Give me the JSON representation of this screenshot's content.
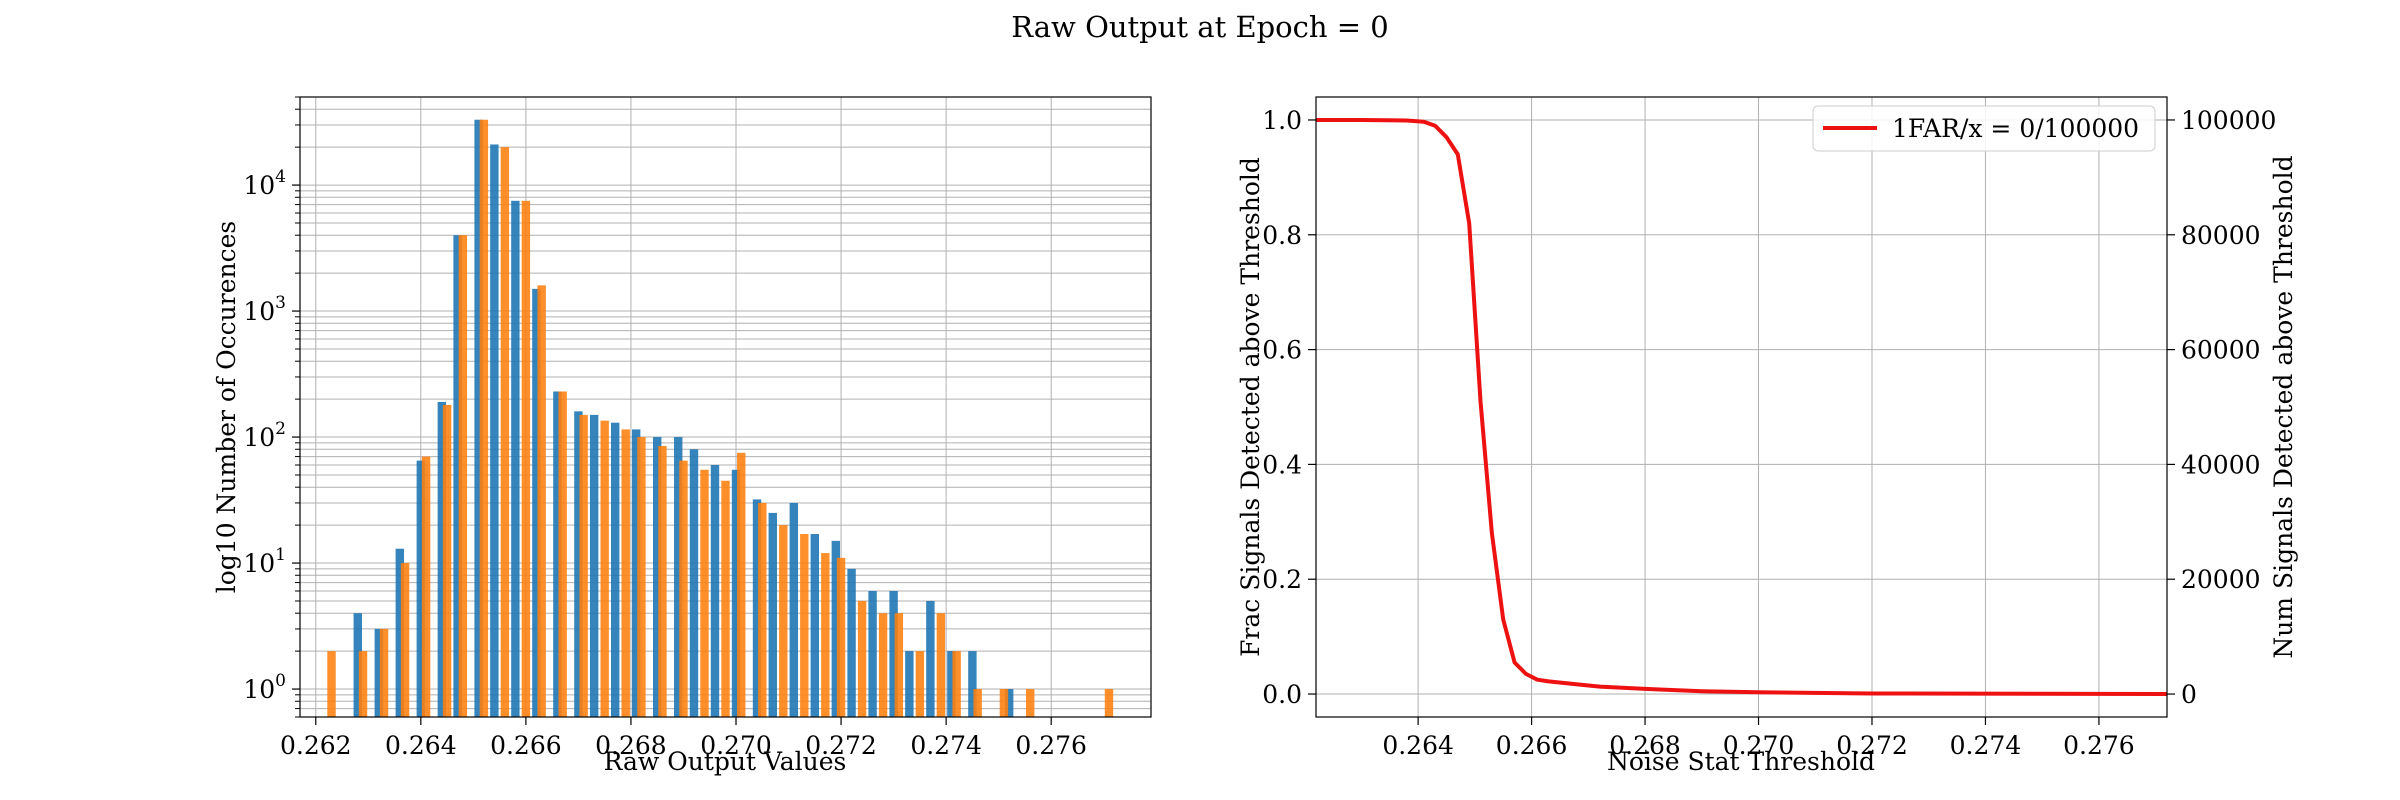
{
  "figure": {
    "title": "Raw Output at Epoch = 0"
  },
  "chart_data": [
    {
      "type": "bar",
      "scale": "log",
      "xlabel": "Raw Output Values",
      "ylabel": "log10 Number of Occurences",
      "xlim": [
        0.2617,
        0.2779
      ],
      "ylim": [
        0.6,
        50000
      ],
      "grid": true,
      "xticks": [
        0.262,
        0.264,
        0.266,
        0.268,
        0.27,
        0.272,
        0.274,
        0.276
      ],
      "xtick_labels": [
        "0.262",
        "0.264",
        "0.266",
        "0.268",
        "0.270",
        "0.272",
        "0.274",
        "0.276"
      ],
      "yticks": [
        1,
        10,
        100,
        1000,
        10000
      ],
      "ytick_labels": [
        {
          "base": "10",
          "exp": "0"
        },
        {
          "base": "10",
          "exp": "1"
        },
        {
          "base": "10",
          "exp": "2"
        },
        {
          "base": "10",
          "exp": "3"
        },
        {
          "base": "10",
          "exp": "4"
        }
      ],
      "colors": {
        "blue": "#1f77b4",
        "orange": "#ff7f0e"
      },
      "series": [
        {
          "values": [
            [
              0.2628,
              4
            ],
            [
              0.2632,
              3
            ],
            [
              0.2636,
              13
            ],
            [
              0.264,
              65
            ],
            [
              0.2644,
              190
            ],
            [
              0.2647,
              4000
            ],
            [
              0.2651,
              33000
            ],
            [
              0.2654,
              21000
            ],
            [
              0.2658,
              7500
            ],
            [
              0.2662,
              1500
            ],
            [
              0.2666,
              230
            ],
            [
              0.267,
              160
            ],
            [
              0.2673,
              150
            ],
            [
              0.2677,
              130
            ],
            [
              0.2681,
              115
            ],
            [
              0.2685,
              100
            ],
            [
              0.2689,
              100
            ],
            [
              0.2692,
              80
            ],
            [
              0.2696,
              60
            ],
            [
              0.27,
              55
            ],
            [
              0.2704,
              32
            ],
            [
              0.2707,
              25
            ],
            [
              0.2711,
              30
            ],
            [
              0.2715,
              17
            ],
            [
              0.2719,
              15
            ],
            [
              0.2722,
              9
            ],
            [
              0.2726,
              6
            ],
            [
              0.273,
              6
            ],
            [
              0.2733,
              2
            ],
            [
              0.2737,
              5
            ],
            [
              0.2741,
              2
            ],
            [
              0.2745,
              2
            ],
            [
              0.2752,
              1
            ]
          ]
        },
        {
          "values": [
            [
              0.2623,
              2
            ],
            [
              0.2629,
              2
            ],
            [
              0.2633,
              3
            ],
            [
              0.2637,
              10
            ],
            [
              0.2641,
              70
            ],
            [
              0.2645,
              180
            ],
            [
              0.2648,
              4000
            ],
            [
              0.2652,
              33000
            ],
            [
              0.2656,
              20000
            ],
            [
              0.266,
              7500
            ],
            [
              0.2663,
              1600
            ],
            [
              0.2667,
              230
            ],
            [
              0.2671,
              150
            ],
            [
              0.2675,
              135
            ],
            [
              0.2679,
              115
            ],
            [
              0.2682,
              100
            ],
            [
              0.2686,
              85
            ],
            [
              0.269,
              65
            ],
            [
              0.2694,
              55
            ],
            [
              0.2698,
              45
            ],
            [
              0.2701,
              75
            ],
            [
              0.2705,
              30
            ],
            [
              0.2709,
              20
            ],
            [
              0.2713,
              17
            ],
            [
              0.2717,
              12
            ],
            [
              0.272,
              11
            ],
            [
              0.2724,
              5
            ],
            [
              0.2728,
              4
            ],
            [
              0.2731,
              4
            ],
            [
              0.2735,
              2
            ],
            [
              0.2739,
              4
            ],
            [
              0.2742,
              2
            ],
            [
              0.2746,
              1
            ],
            [
              0.2751,
              1
            ],
            [
              0.2756,
              1
            ],
            [
              0.2771,
              1
            ]
          ]
        }
      ]
    },
    {
      "type": "line",
      "xlabel": "Noise Stat Threshold",
      "ylabel": "Frac Signals Detected above Threshold",
      "ylabel_right": "Num Signals Detected above Threshold",
      "xlim": [
        0.2622,
        0.2772
      ],
      "ylim": [
        -0.04,
        1.04
      ],
      "ylim_right": [
        -4000,
        104000
      ],
      "grid": true,
      "legend_position": "top-right",
      "xticks": [
        0.264,
        0.266,
        0.268,
        0.27,
        0.272,
        0.274,
        0.276
      ],
      "xtick_labels": [
        "0.264",
        "0.266",
        "0.268",
        "0.270",
        "0.272",
        "0.274",
        "0.276"
      ],
      "yticks": [
        0,
        0.2,
        0.4,
        0.6,
        0.8,
        1.0
      ],
      "ytick_labels": [
        "0.0",
        "0.2",
        "0.4",
        "0.6",
        "0.8",
        "1.0"
      ],
      "yticks_right": [
        0,
        20000,
        40000,
        60000,
        80000,
        100000
      ],
      "ytick_labels_right": [
        "0",
        "20000",
        "40000",
        "60000",
        "80000",
        "100000"
      ],
      "series": [
        {
          "name": "1FAR/x = 0/100000",
          "color": "#ee1111",
          "x": [
            0.2622,
            0.263,
            0.2638,
            0.2641,
            0.2643,
            0.2645,
            0.2647,
            0.2649,
            0.2651,
            0.2653,
            0.2655,
            0.2657,
            0.2659,
            0.2661,
            0.2663,
            0.2667,
            0.2672,
            0.268,
            0.269,
            0.27,
            0.272,
            0.2772
          ],
          "y": [
            1.0,
            1.0,
            0.999,
            0.997,
            0.99,
            0.97,
            0.94,
            0.82,
            0.51,
            0.28,
            0.13,
            0.055,
            0.035,
            0.025,
            0.022,
            0.018,
            0.013,
            0.009,
            0.005,
            0.003,
            0.001,
            0.0
          ]
        }
      ]
    }
  ]
}
